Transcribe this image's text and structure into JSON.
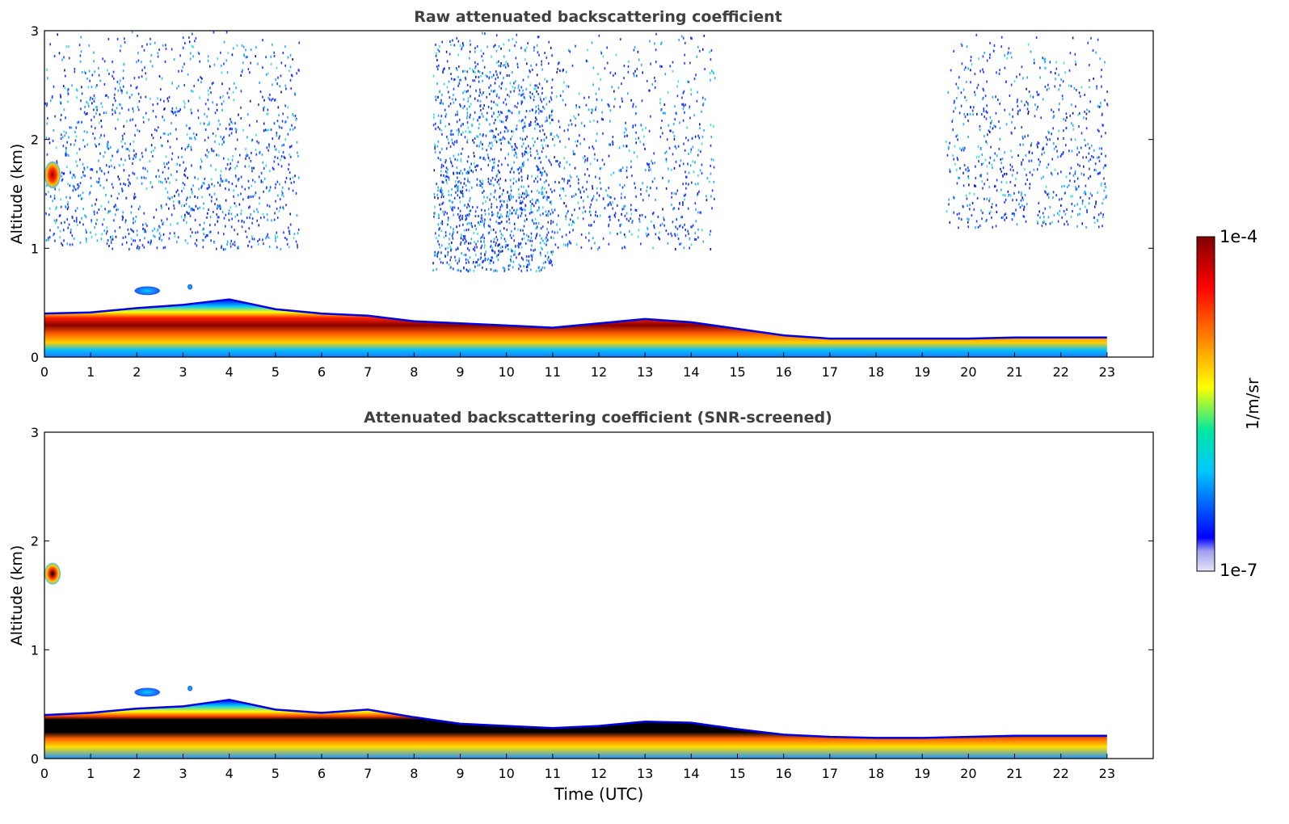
{
  "chart_data": [
    {
      "type": "heatmap",
      "title": "Raw attenuated backscattering coefficient",
      "xlabel": "",
      "ylabel": "Altitude (km)",
      "xlim": [
        0,
        24
      ],
      "ylim": [
        0,
        3
      ],
      "x_ticks": [
        "0",
        "1",
        "2",
        "3",
        "4",
        "5",
        "6",
        "7",
        "8",
        "9",
        "10",
        "11",
        "12",
        "13",
        "14",
        "15",
        "16",
        "17",
        "18",
        "19",
        "20",
        "21",
        "22",
        "23"
      ],
      "y_ticks": [
        "0",
        "1",
        "2",
        "3"
      ],
      "data_end_hour": 23,
      "layer_top_km": [
        [
          0,
          0.4
        ],
        [
          1,
          0.41
        ],
        [
          2,
          0.45
        ],
        [
          3,
          0.48
        ],
        [
          4,
          0.53
        ],
        [
          5,
          0.44
        ],
        [
          6,
          0.4
        ],
        [
          7,
          0.38
        ],
        [
          8,
          0.33
        ],
        [
          9,
          0.31
        ],
        [
          10,
          0.29
        ],
        [
          11,
          0.27
        ],
        [
          12,
          0.31
        ],
        [
          13,
          0.35
        ],
        [
          14,
          0.32
        ],
        [
          15,
          0.26
        ],
        [
          16,
          0.2
        ],
        [
          17,
          0.17
        ],
        [
          18,
          0.17
        ],
        [
          19,
          0.17
        ],
        [
          20,
          0.17
        ],
        [
          21,
          0.18
        ],
        [
          22,
          0.18
        ],
        [
          23,
          0.18
        ]
      ],
      "cloud_features": [
        {
          "x_range": [
            0.0,
            0.35
          ],
          "alt_range_km": [
            1.55,
            1.8
          ],
          "level": "high"
        },
        {
          "x_range": [
            1.95,
            2.5
          ],
          "alt_range_km": [
            0.57,
            0.65
          ],
          "level": "medium"
        },
        {
          "x_range": [
            3.1,
            3.2
          ],
          "alt_range_km": [
            0.62,
            0.67
          ],
          "level": "medium"
        }
      ],
      "noise_fields": [
        {
          "x_range": [
            0.0,
            5.5
          ],
          "alt_range_km": [
            1.0,
            3.0
          ],
          "density": "high"
        },
        {
          "x_range": [
            8.4,
            11.0
          ],
          "alt_range_km": [
            0.8,
            3.0
          ],
          "density": "high"
        },
        {
          "x_range": [
            11.0,
            14.5
          ],
          "alt_range_km": [
            1.0,
            3.0
          ],
          "density": "medium"
        },
        {
          "x_range": [
            19.5,
            23.0
          ],
          "alt_range_km": [
            1.2,
            3.0
          ],
          "density": "medium"
        }
      ]
    },
    {
      "type": "heatmap",
      "title": "Attenuated backscattering coefficient (SNR-screened)",
      "xlabel": "Time (UTC)",
      "ylabel": "Altitude (km)",
      "xlim": [
        0,
        24
      ],
      "ylim": [
        0,
        3
      ],
      "x_ticks": [
        "0",
        "1",
        "2",
        "3",
        "4",
        "5",
        "6",
        "7",
        "8",
        "9",
        "10",
        "11",
        "12",
        "13",
        "14",
        "15",
        "16",
        "17",
        "18",
        "19",
        "20",
        "21",
        "22",
        "23"
      ],
      "y_ticks": [
        "0",
        "1",
        "2",
        "3"
      ],
      "data_end_hour": 23,
      "layer_top_km": [
        [
          0,
          0.4
        ],
        [
          1,
          0.42
        ],
        [
          2,
          0.46
        ],
        [
          3,
          0.48
        ],
        [
          4,
          0.54
        ],
        [
          5,
          0.45
        ],
        [
          6,
          0.42
        ],
        [
          7,
          0.45
        ],
        [
          8,
          0.38
        ],
        [
          9,
          0.32
        ],
        [
          10,
          0.3
        ],
        [
          11,
          0.28
        ],
        [
          12,
          0.3
        ],
        [
          13,
          0.34
        ],
        [
          14,
          0.33
        ],
        [
          15,
          0.27
        ],
        [
          16,
          0.22
        ],
        [
          17,
          0.2
        ],
        [
          18,
          0.19
        ],
        [
          19,
          0.19
        ],
        [
          20,
          0.2
        ],
        [
          21,
          0.21
        ],
        [
          22,
          0.21
        ],
        [
          23,
          0.21
        ]
      ],
      "cloud_features": [
        {
          "x_range": [
            0.0,
            0.35
          ],
          "alt_range_km": [
            1.6,
            1.8
          ],
          "level": "saturated"
        },
        {
          "x_range": [
            1.95,
            2.5
          ],
          "alt_range_km": [
            0.57,
            0.65
          ],
          "level": "medium"
        },
        {
          "x_range": [
            3.1,
            3.2
          ],
          "alt_range_km": [
            0.62,
            0.67
          ],
          "level": "medium"
        }
      ]
    }
  ],
  "colorbar": {
    "label": "1/m/sr",
    "max_label": "1e-4",
    "min_label": "1e-7",
    "colormap": "jet",
    "colors": [
      "#e6e6f8",
      "#0000ff",
      "#00c8ff",
      "#00e8a0",
      "#ffff00",
      "#ff8000",
      "#ff0000",
      "#800000"
    ]
  }
}
